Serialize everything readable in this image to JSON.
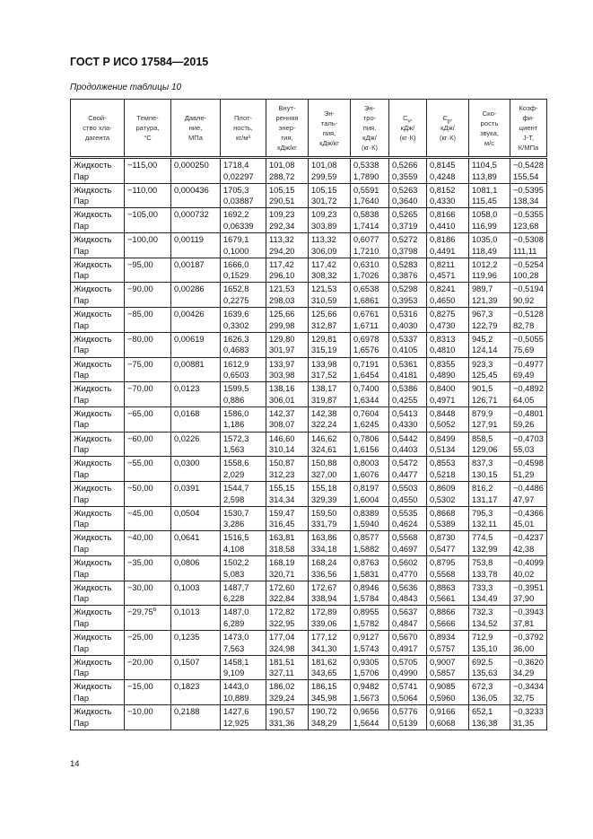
{
  "header": {
    "doc_title": "ГОСТ Р ИСО 17584—2015"
  },
  "caption": "Продолжение таблицы 10",
  "table": {
    "columns": [
      {
        "lines": [
          "Свой-",
          "ство хла-",
          "дагента"
        ]
      },
      {
        "lines": [
          "Темпе-",
          "ратура,",
          "°C"
        ]
      },
      {
        "lines": [
          "Давле-",
          "ние,",
          "МПа"
        ]
      },
      {
        "lines": [
          "Плот-",
          "ность,",
          "кг/м³"
        ]
      },
      {
        "lines": [
          "Внут-",
          "ренняя",
          "энер-",
          "гия,",
          "кДж/кг"
        ]
      },
      {
        "lines": [
          "Эн-",
          "таль-",
          "пия,",
          "кДж/кг"
        ]
      },
      {
        "lines": [
          "Эн-",
          "тро-",
          "пия,",
          "кДж/",
          "(кг·К)"
        ]
      },
      {
        "main": "C",
        "sub": "v",
        "lines_after": [
          ",",
          "кДж/",
          "(кг·К)"
        ]
      },
      {
        "main": "C",
        "sub": "p",
        "lines_after": [
          ",",
          "кДж/",
          "(кг·К)"
        ]
      },
      {
        "lines": [
          "Ско-",
          "рость",
          "звука,",
          "м/с"
        ]
      },
      {
        "lines": [
          "Коэф-",
          "фи-",
          "циент",
          "J-T,",
          "К/МПа"
        ]
      }
    ],
    "phase_labels": [
      "Жидкость",
      "Пар"
    ],
    "rows": [
      {
        "t": "−115,00",
        "p": "0,000250",
        "v": [
          [
            "1718,4",
            "0,02297"
          ],
          [
            "101,08",
            "288,72"
          ],
          [
            "101,08",
            "299,59"
          ],
          [
            "0,5338",
            "1,7890"
          ],
          [
            "0,5266",
            "0,3559"
          ],
          [
            "0,8145",
            "0,4248"
          ],
          [
            "1104,5",
            "113,89"
          ],
          [
            "−0,5428",
            "155,54"
          ]
        ]
      },
      {
        "t": "−110,00",
        "p": "0,000436",
        "v": [
          [
            "1705,3",
            "0,03887"
          ],
          [
            "105,15",
            "290,51"
          ],
          [
            "105,15",
            "301,72"
          ],
          [
            "0,5591",
            "1,7640"
          ],
          [
            "0,5263",
            "0,3640"
          ],
          [
            "0,8152",
            "0,4330"
          ],
          [
            "1081,1",
            "115,45"
          ],
          [
            "−0,5395",
            "138,34"
          ]
        ]
      },
      {
        "t": "−105,00",
        "p": "0,000732",
        "v": [
          [
            "1692,2",
            "0,06339"
          ],
          [
            "109,23",
            "292,34"
          ],
          [
            "109,23",
            "303,89"
          ],
          [
            "0,5838",
            "1,7414"
          ],
          [
            "0,5265",
            "0,3719"
          ],
          [
            "0,8166",
            "0,4410"
          ],
          [
            "1058,0",
            "116,99"
          ],
          [
            "−0,5355",
            "123,68"
          ]
        ]
      },
      {
        "t": "−100,00",
        "p": "0,00119",
        "v": [
          [
            "1679,1",
            "0,1000"
          ],
          [
            "113,32",
            "294,20"
          ],
          [
            "113,32",
            "306,09"
          ],
          [
            "0,6077",
            "1,7210"
          ],
          [
            "0,5272",
            "0,3798"
          ],
          [
            "0,8186",
            "0,4491"
          ],
          [
            "1035,0",
            "118,49"
          ],
          [
            "−0,5308",
            "111,11"
          ]
        ]
      },
      {
        "t": "−95,00",
        "p": "0,00187",
        "v": [
          [
            "1666,0",
            "0,1529"
          ],
          [
            "117,42",
            "296,10"
          ],
          [
            "117,42",
            "308,32"
          ],
          [
            "0,6310",
            "1,7026"
          ],
          [
            "0,5283",
            "0,3876"
          ],
          [
            "0,8211",
            "0,4571"
          ],
          [
            "1012,2",
            "119,96"
          ],
          [
            "−0,5254",
            "100,28"
          ]
        ]
      },
      {
        "t": "−90,00",
        "p": "0,00286",
        "v": [
          [
            "1652,8",
            "0,2275"
          ],
          [
            "121,53",
            "298,03"
          ],
          [
            "121,53",
            "310,59"
          ],
          [
            "0,6538",
            "1,6861"
          ],
          [
            "0,5298",
            "0,3953"
          ],
          [
            "0,8241",
            "0,4650"
          ],
          [
            "989,7",
            "121,39"
          ],
          [
            "−0,5194",
            "90,92"
          ]
        ]
      },
      {
        "t": "−85,00",
        "p": "0,00426",
        "v": [
          [
            "1639,6",
            "0,3302"
          ],
          [
            "125,66",
            "299,98"
          ],
          [
            "125,66",
            "312,87"
          ],
          [
            "0,6761",
            "1,6711"
          ],
          [
            "0,5316",
            "0,4030"
          ],
          [
            "0,8275",
            "0,4730"
          ],
          [
            "967,3",
            "122,79"
          ],
          [
            "−0,5128",
            "82,78"
          ]
        ]
      },
      {
        "t": "−80,00",
        "p": "0,00619",
        "v": [
          [
            "1626,3",
            "0,4683"
          ],
          [
            "129,80",
            "301,97"
          ],
          [
            "129,81",
            "315,19"
          ],
          [
            "0,6978",
            "1,6576"
          ],
          [
            "0,5337",
            "0,4105"
          ],
          [
            "0,8313",
            "0,4810"
          ],
          [
            "945,2",
            "124,14"
          ],
          [
            "−0,5055",
            "75,69"
          ]
        ]
      },
      {
        "t": "−75,00",
        "p": "0,00881",
        "v": [
          [
            "1612,9",
            "0,6503"
          ],
          [
            "133,97",
            "303,98"
          ],
          [
            "133,98",
            "317,52"
          ],
          [
            "0,7191",
            "1,6454"
          ],
          [
            "0,5361",
            "0,4181"
          ],
          [
            "0,8355",
            "0,4890"
          ],
          [
            "923,3",
            "125,45"
          ],
          [
            "−0,4977",
            "69,49"
          ]
        ]
      },
      {
        "t": "−70,00",
        "p": "0,0123",
        "v": [
          [
            "1599,5",
            "0,886"
          ],
          [
            "138,16",
            "306,01"
          ],
          [
            "138,17",
            "319,87"
          ],
          [
            "0,7400",
            "1,6344"
          ],
          [
            "0,5386",
            "0,4255"
          ],
          [
            "0,8400",
            "0,4971"
          ],
          [
            "901,5",
            "126,71"
          ],
          [
            "−0,4892",
            "64,05"
          ]
        ]
      },
      {
        "t": "−65,00",
        "p": "0,0168",
        "v": [
          [
            "1586,0",
            "1,186"
          ],
          [
            "142,37",
            "308,07"
          ],
          [
            "142,38",
            "322,24"
          ],
          [
            "0,7604",
            "1,6245"
          ],
          [
            "0,5413",
            "0,4330"
          ],
          [
            "0,8448",
            "0,5052"
          ],
          [
            "879,9",
            "127,91"
          ],
          [
            "−0,4801",
            "59,26"
          ]
        ]
      },
      {
        "t": "−60,00",
        "p": "0,0226",
        "v": [
          [
            "1572,3",
            "1,563"
          ],
          [
            "146,60",
            "310,14"
          ],
          [
            "146,62",
            "324,61"
          ],
          [
            "0,7806",
            "1,6156"
          ],
          [
            "0,5442",
            "0,4403"
          ],
          [
            "0,8499",
            "0,5134"
          ],
          [
            "858,5",
            "129,06"
          ],
          [
            "−0,4703",
            "55,03"
          ]
        ]
      },
      {
        "t": "−55,00",
        "p": "0,0300",
        "v": [
          [
            "1558,6",
            "2,029"
          ],
          [
            "150,87",
            "312,23"
          ],
          [
            "150,88",
            "327,00"
          ],
          [
            "0,8003",
            "1,6076"
          ],
          [
            "0,5472",
            "0,4477"
          ],
          [
            "0,8553",
            "0,5218"
          ],
          [
            "837,3",
            "130,15"
          ],
          [
            "−0,4598",
            "51,29"
          ]
        ]
      },
      {
        "t": "−50,00",
        "p": "0,0391",
        "v": [
          [
            "1544,7",
            "2,598"
          ],
          [
            "155,15",
            "314,34"
          ],
          [
            "155,18",
            "329,39"
          ],
          [
            "0,8197",
            "1,6004"
          ],
          [
            "0,5503",
            "0,4550"
          ],
          [
            "0,8609",
            "0,5302"
          ],
          [
            "816,2",
            "131,17"
          ],
          [
            "−0,4486",
            "47,97"
          ]
        ]
      },
      {
        "t": "−45,00",
        "p": "0,0504",
        "v": [
          [
            "1530,7",
            "3,286"
          ],
          [
            "159,47",
            "316,45"
          ],
          [
            "159,50",
            "331,79"
          ],
          [
            "0,8389",
            "1,5940"
          ],
          [
            "0,5535",
            "0,4624"
          ],
          [
            "0,8668",
            "0,5389"
          ],
          [
            "795,3",
            "132,11"
          ],
          [
            "−0,4366",
            "45,01"
          ]
        ]
      },
      {
        "t": "−40,00",
        "p": "0,0641",
        "v": [
          [
            "1516,5",
            "4,108"
          ],
          [
            "163,81",
            "318,58"
          ],
          [
            "163,86",
            "334,18"
          ],
          [
            "0,8577",
            "1,5882"
          ],
          [
            "0,5568",
            "0,4697"
          ],
          [
            "0,8730",
            "0,5477"
          ],
          [
            "774,5",
            "132,99"
          ],
          [
            "−0,4237",
            "42,38"
          ]
        ]
      },
      {
        "t": "−35,00",
        "p": "0,0806",
        "v": [
          [
            "1502,2",
            "5,083"
          ],
          [
            "168,19",
            "320,71"
          ],
          [
            "168,24",
            "336,56"
          ],
          [
            "0,8763",
            "1,5831"
          ],
          [
            "0,5602",
            "0,4770"
          ],
          [
            "0,8795",
            "0,5568"
          ],
          [
            "753,8",
            "133,78"
          ],
          [
            "−0,4099",
            "40,02"
          ]
        ]
      },
      {
        "t": "−30,00",
        "p": "0,1003",
        "v": [
          [
            "1487,7",
            "6,228"
          ],
          [
            "172,60",
            "322,84"
          ],
          [
            "172,67",
            "338,94"
          ],
          [
            "0,8946",
            "1,5784"
          ],
          [
            "0,5636",
            "0,4843"
          ],
          [
            "0,8863",
            "0,5661"
          ],
          [
            "733,3",
            "134,49"
          ],
          [
            "−0,3951",
            "37,90"
          ]
        ]
      },
      {
        "t": "−29,75",
        "sup": "b",
        "p": "0,1013",
        "v": [
          [
            "1487,0",
            "6,289"
          ],
          [
            "172,82",
            "322,95"
          ],
          [
            "172,89",
            "339,06"
          ],
          [
            "0,8955",
            "1,5782"
          ],
          [
            "0,5637",
            "0,4847"
          ],
          [
            "0,8866",
            "0,5666"
          ],
          [
            "732,3",
            "134,52"
          ],
          [
            "−0,3943",
            "37,81"
          ]
        ]
      },
      {
        "t": "−25,00",
        "p": "0,1235",
        "v": [
          [
            "1473,0",
            "7,563"
          ],
          [
            "177,04",
            "324,98"
          ],
          [
            "177,12",
            "341,30"
          ],
          [
            "0,9127",
            "1,5743"
          ],
          [
            "0,5670",
            "0,4917"
          ],
          [
            "0,8934",
            "0,5757"
          ],
          [
            "712,9",
            "135,10"
          ],
          [
            "−0,3792",
            "36,00"
          ]
        ]
      },
      {
        "t": "−20,00",
        "p": "0,1507",
        "v": [
          [
            "1458,1",
            "9,109"
          ],
          [
            "181,51",
            "327,11"
          ],
          [
            "181,62",
            "343,65"
          ],
          [
            "0,9305",
            "1,5706"
          ],
          [
            "0,5705",
            "0,4990"
          ],
          [
            "0,9007",
            "0,5857"
          ],
          [
            "692,5",
            "135,63"
          ],
          [
            "−0,3620",
            "34,29"
          ]
        ]
      },
      {
        "t": "−15,00",
        "p": "0,1823",
        "v": [
          [
            "1443,0",
            "10,889"
          ],
          [
            "186,02",
            "329,24"
          ],
          [
            "186,15",
            "345,98"
          ],
          [
            "0,9482",
            "1,5673"
          ],
          [
            "0,5741",
            "0,5064"
          ],
          [
            "0,9085",
            "0,5960"
          ],
          [
            "672,3",
            "136,05"
          ],
          [
            "−0,3434",
            "32,75"
          ]
        ]
      },
      {
        "t": "−10,00",
        "p": "0,2188",
        "v": [
          [
            "1427,6",
            "12,925"
          ],
          [
            "190,57",
            "331,36"
          ],
          [
            "190,72",
            "348,29"
          ],
          [
            "0,9656",
            "1,5644"
          ],
          [
            "0,5776",
            "0,5139"
          ],
          [
            "0,9166",
            "0,6068"
          ],
          [
            "652,1",
            "136,38"
          ],
          [
            "−0,3233",
            "31,35"
          ]
        ]
      }
    ]
  },
  "footer": {
    "page_number": "14"
  }
}
